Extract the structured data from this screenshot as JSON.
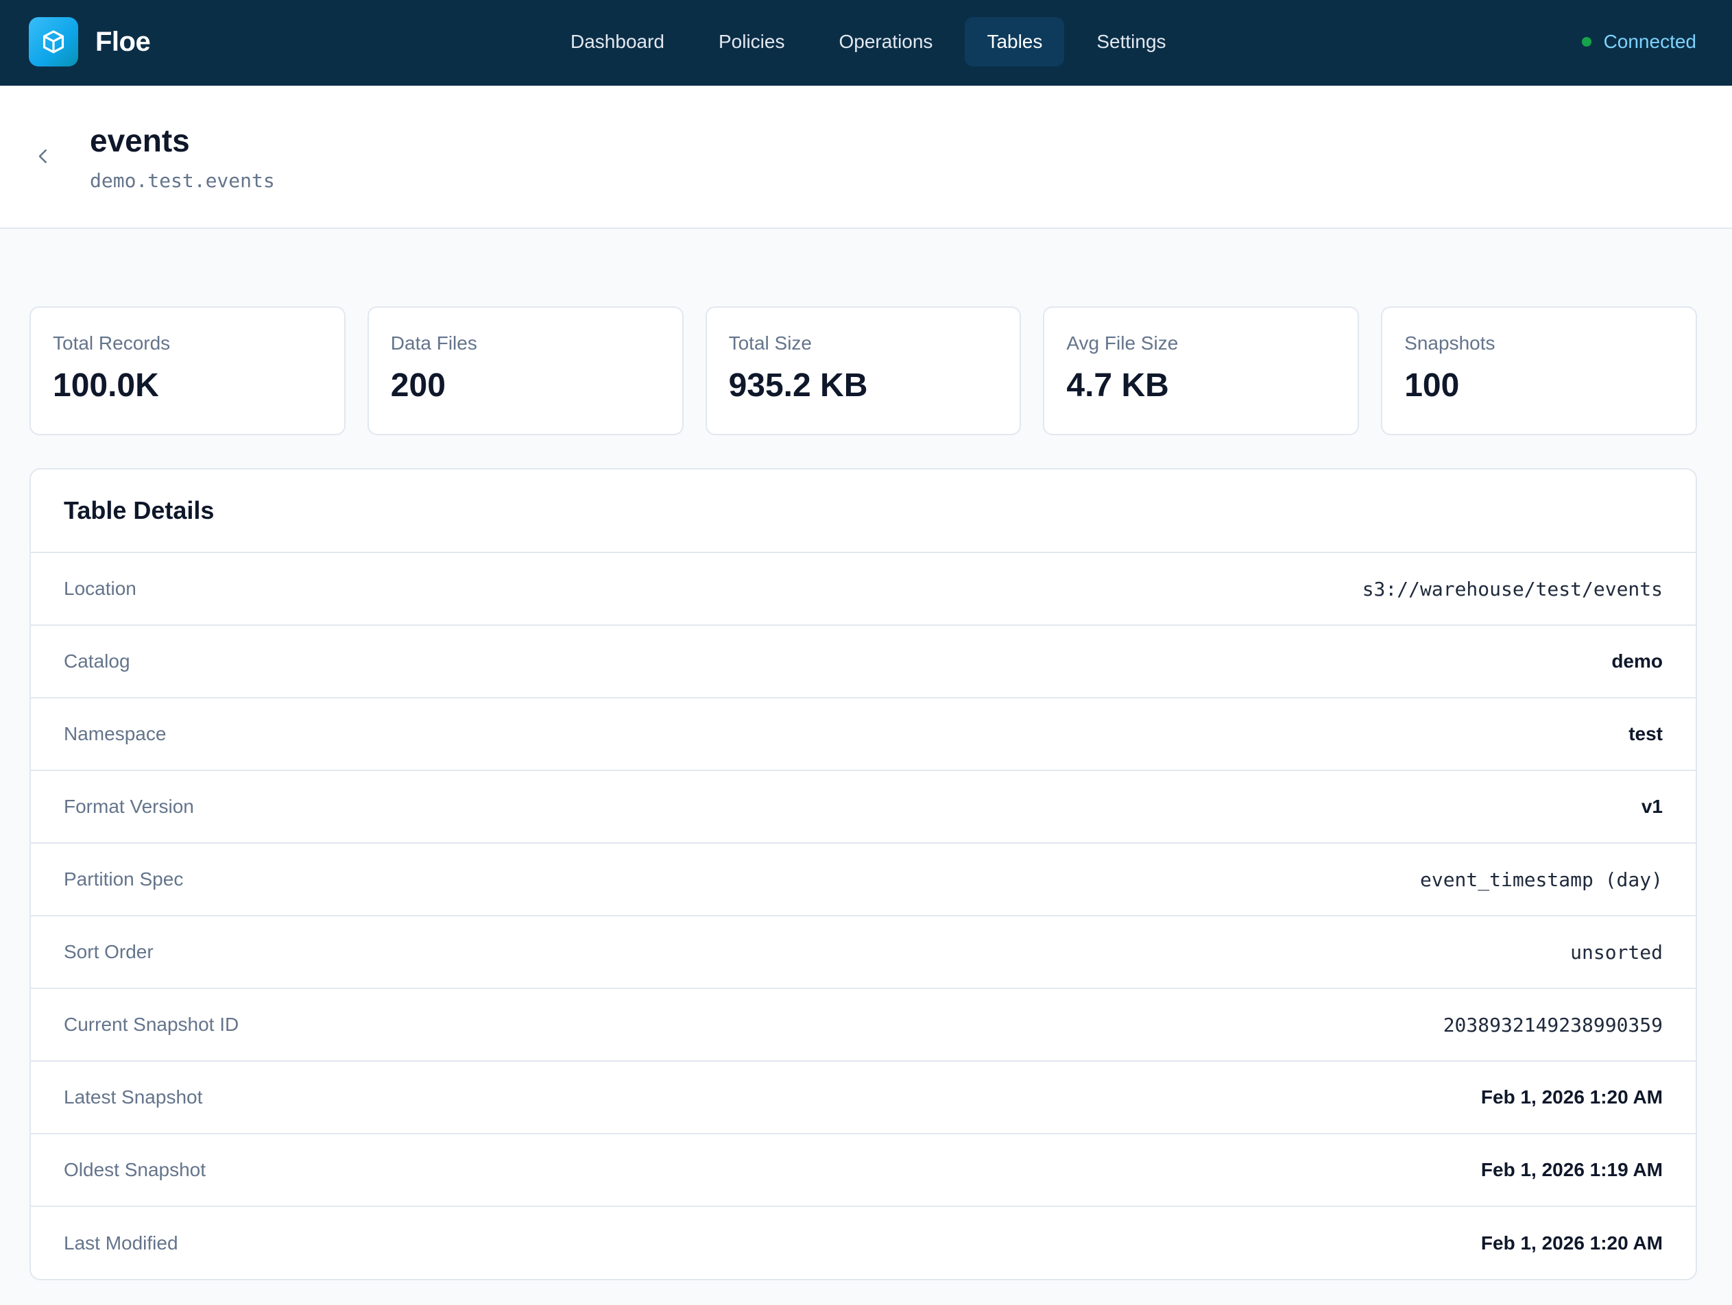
{
  "app": {
    "name": "Floe",
    "logo_icon": "cube-icon",
    "accent": "#0ea5e9",
    "nav_bg": "#0b2e47"
  },
  "nav": {
    "items": [
      {
        "label": "Dashboard"
      },
      {
        "label": "Policies"
      },
      {
        "label": "Operations"
      },
      {
        "label": "Tables",
        "active": true
      },
      {
        "label": "Settings"
      }
    ]
  },
  "status": {
    "label": "Connected",
    "color": "#16a34a"
  },
  "header": {
    "title": "events",
    "subtitle": "demo.test.events"
  },
  "stats": [
    {
      "label": "Total Records",
      "value": "100.0K"
    },
    {
      "label": "Data Files",
      "value": "200"
    },
    {
      "label": "Total Size",
      "value": "935.2 KB"
    },
    {
      "label": "Avg File Size",
      "value": "4.7 KB"
    },
    {
      "label": "Snapshots",
      "value": "100"
    }
  ],
  "details": {
    "title": "Table Details",
    "rows": [
      {
        "label": "Location",
        "value": "s3://warehouse/test/events",
        "mono": true
      },
      {
        "label": "Catalog",
        "value": "demo",
        "mono": false
      },
      {
        "label": "Namespace",
        "value": "test",
        "mono": false
      },
      {
        "label": "Format Version",
        "value": "v1",
        "mono": false
      },
      {
        "label": "Partition Spec",
        "value": "event_timestamp (day)",
        "mono": true
      },
      {
        "label": "Sort Order",
        "value": "unsorted",
        "mono": true
      },
      {
        "label": "Current Snapshot ID",
        "value": "2038932149238990359",
        "mono": true
      },
      {
        "label": "Latest Snapshot",
        "value": "Feb 1, 2026 1:20 AM",
        "mono": false
      },
      {
        "label": "Oldest Snapshot",
        "value": "Feb 1, 2026 1:19 AM",
        "mono": false
      },
      {
        "label": "Last Modified",
        "value": "Feb 1, 2026 1:20 AM",
        "mono": false
      }
    ]
  }
}
